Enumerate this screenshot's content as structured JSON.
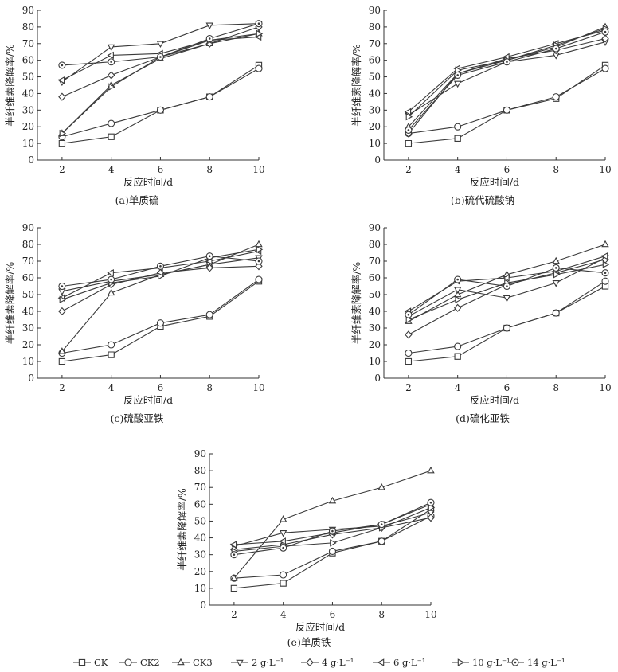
{
  "chart_data": [
    {
      "id": "a",
      "type": "line",
      "caption": "(a)单质硫",
      "xlabel": "反应时间/d",
      "ylabel": "半纤维素降解率/%",
      "x": [
        2,
        4,
        6,
        8,
        10
      ],
      "xlim": [
        1,
        10
      ],
      "ylim": [
        0,
        90
      ],
      "xticks": [
        2,
        4,
        6,
        8,
        10
      ],
      "yticks": [
        0,
        10,
        20,
        30,
        40,
        50,
        60,
        70,
        80,
        90
      ],
      "series": [
        {
          "name": "CK",
          "values": [
            10,
            14,
            30,
            38,
            57
          ]
        },
        {
          "name": "CK2",
          "values": [
            14,
            22,
            30,
            38,
            55
          ]
        },
        {
          "name": "CK3",
          "values": [
            16,
            45,
            61,
            70,
            76
          ]
        },
        {
          "name": "2 g·L⁻¹",
          "values": [
            47,
            68,
            70,
            81,
            82
          ]
        },
        {
          "name": "4 g·L⁻¹",
          "values": [
            38,
            51,
            62,
            70,
            80
          ]
        },
        {
          "name": "6 g·L⁻¹",
          "values": [
            48,
            63,
            64,
            72,
            74
          ]
        },
        {
          "name": "10 g·L⁻¹",
          "values": [
            16,
            44,
            62,
            72,
            76
          ]
        },
        {
          "name": "14 g·L⁻¹",
          "values": [
            57,
            59,
            62,
            73,
            82
          ]
        }
      ]
    },
    {
      "id": "b",
      "type": "line",
      "caption": "(b)硫代硫酸钠",
      "xlabel": "反应时间/d",
      "ylabel": "半纤维素降解率/%",
      "x": [
        2,
        4,
        6,
        8,
        10
      ],
      "xlim": [
        1,
        10
      ],
      "ylim": [
        0,
        90
      ],
      "xticks": [
        2,
        4,
        6,
        8,
        10
      ],
      "yticks": [
        0,
        10,
        20,
        30,
        40,
        50,
        60,
        70,
        80,
        90
      ],
      "series": [
        {
          "name": "CK",
          "values": [
            10,
            13,
            30,
            37,
            57
          ]
        },
        {
          "name": "CK2",
          "values": [
            16,
            20,
            30,
            38,
            55
          ]
        },
        {
          "name": "CK3",
          "values": [
            20,
            52,
            60,
            68,
            80
          ]
        },
        {
          "name": "2 g·L⁻¹",
          "values": [
            27,
            46,
            59,
            63,
            71
          ]
        },
        {
          "name": "4 g·L⁻¹",
          "values": [
            16,
            52,
            61,
            66,
            73
          ]
        },
        {
          "name": "6 g·L⁻¹",
          "values": [
            29,
            55,
            62,
            70,
            78
          ]
        },
        {
          "name": "10 g·L⁻¹",
          "values": [
            26,
            54,
            60,
            69,
            79
          ]
        },
        {
          "name": "14 g·L⁻¹",
          "values": [
            18,
            51,
            59,
            67,
            77
          ]
        }
      ]
    },
    {
      "id": "c",
      "type": "line",
      "caption": "(c)硫酸亚铁",
      "xlabel": "反应时间/d",
      "ylabel": "半纤维素降解率/%",
      "x": [
        2,
        4,
        6,
        8,
        10
      ],
      "xlim": [
        1,
        10
      ],
      "ylim": [
        0,
        90
      ],
      "xticks": [
        2,
        4,
        6,
        8,
        10
      ],
      "yticks": [
        0,
        10,
        20,
        30,
        40,
        50,
        60,
        70,
        80,
        90
      ],
      "series": [
        {
          "name": "CK",
          "values": [
            10,
            14,
            31,
            37,
            58
          ]
        },
        {
          "name": "CK2",
          "values": [
            15,
            20,
            33,
            38,
            59
          ]
        },
        {
          "name": "CK3",
          "values": [
            16,
            51,
            62,
            68,
            80
          ]
        },
        {
          "name": "2 g·L⁻¹",
          "values": [
            52,
            58,
            62,
            68,
            72
          ]
        },
        {
          "name": "4 g·L⁻¹",
          "values": [
            40,
            56,
            63,
            66,
            67
          ]
        },
        {
          "name": "6 g·L⁻¹",
          "values": [
            48,
            63,
            66,
            70,
            76
          ]
        },
        {
          "name": "10 g·L⁻¹",
          "values": [
            47,
            57,
            61,
            72,
            77
          ]
        },
        {
          "name": "14 g·L⁻¹",
          "values": [
            55,
            59,
            67,
            73,
            70
          ]
        }
      ]
    },
    {
      "id": "d",
      "type": "line",
      "caption": "(d)硫化亚铁",
      "xlabel": "反应时间/d",
      "ylabel": "半纤维素降解率/%",
      "x": [
        2,
        4,
        6,
        8,
        10
      ],
      "xlim": [
        1,
        10
      ],
      "ylim": [
        0,
        90
      ],
      "xticks": [
        2,
        4,
        6,
        8,
        10
      ],
      "yticks": [
        0,
        10,
        20,
        30,
        40,
        50,
        60,
        70,
        80,
        90
      ],
      "series": [
        {
          "name": "CK",
          "values": [
            10,
            13,
            30,
            39,
            55
          ]
        },
        {
          "name": "CK2",
          "values": [
            15,
            19,
            30,
            39,
            58
          ]
        },
        {
          "name": "CK3",
          "values": [
            34,
            50,
            62,
            70,
            80
          ]
        },
        {
          "name": "2 g·L⁻¹",
          "values": [
            37,
            53,
            48,
            57,
            72
          ]
        },
        {
          "name": "4 g·L⁻¹",
          "values": [
            26,
            42,
            56,
            63,
            71
          ]
        },
        {
          "name": "6 g·L⁻¹",
          "values": [
            40,
            58,
            60,
            64,
            73
          ]
        },
        {
          "name": "10 g·L⁻¹",
          "values": [
            35,
            47,
            57,
            62,
            68
          ]
        },
        {
          "name": "14 g·L⁻¹",
          "values": [
            38,
            59,
            55,
            66,
            63
          ]
        }
      ]
    },
    {
      "id": "e",
      "type": "line",
      "caption": "(e)单质铁",
      "xlabel": "反应时间/d",
      "ylabel": "半纤维素降解率/%",
      "x": [
        2,
        4,
        6,
        8,
        10
      ],
      "xlim": [
        1,
        10
      ],
      "ylim": [
        0,
        90
      ],
      "xticks": [
        2,
        4,
        6,
        8,
        10
      ],
      "yticks": [
        0,
        10,
        20,
        30,
        40,
        50,
        60,
        70,
        80,
        90
      ],
      "series": [
        {
          "name": "CK",
          "values": [
            10,
            13,
            31,
            38,
            57
          ]
        },
        {
          "name": "CK2",
          "values": [
            16,
            18,
            32,
            38,
            53
          ]
        },
        {
          "name": "CK3",
          "values": [
            16,
            51,
            62,
            70,
            80
          ]
        },
        {
          "name": "2 g·L⁻¹",
          "values": [
            35,
            43,
            45,
            47,
            55
          ]
        },
        {
          "name": "4 g·L⁻¹",
          "values": [
            33,
            36,
            42,
            46,
            52
          ]
        },
        {
          "name": "6 g·L⁻¹",
          "values": [
            36,
            38,
            43,
            48,
            60
          ]
        },
        {
          "name": "10 g·L⁻¹",
          "values": [
            32,
            35,
            37,
            46,
            58
          ]
        },
        {
          "name": "14 g·L⁻¹",
          "values": [
            30,
            34,
            44,
            48,
            61
          ]
        }
      ]
    }
  ],
  "legend": {
    "items": [
      {
        "label": "CK",
        "marker": "square"
      },
      {
        "label": "CK2",
        "marker": "circle"
      },
      {
        "label": "CK3",
        "marker": "triangle-up"
      },
      {
        "label": "2 g·L⁻¹",
        "marker": "triangle-down"
      },
      {
        "label": "4 g·L⁻¹",
        "marker": "diamond"
      },
      {
        "label": "6 g·L⁻¹",
        "marker": "triangle-left"
      },
      {
        "label": "10 g·L⁻¹",
        "marker": "triangle-right"
      },
      {
        "label": "14 g·L⁻¹",
        "marker": "circle-dot"
      }
    ]
  },
  "style": {
    "line_color": "#3a3a3a",
    "marker_fill": "#ffffff",
    "axis_color": "#333333"
  }
}
